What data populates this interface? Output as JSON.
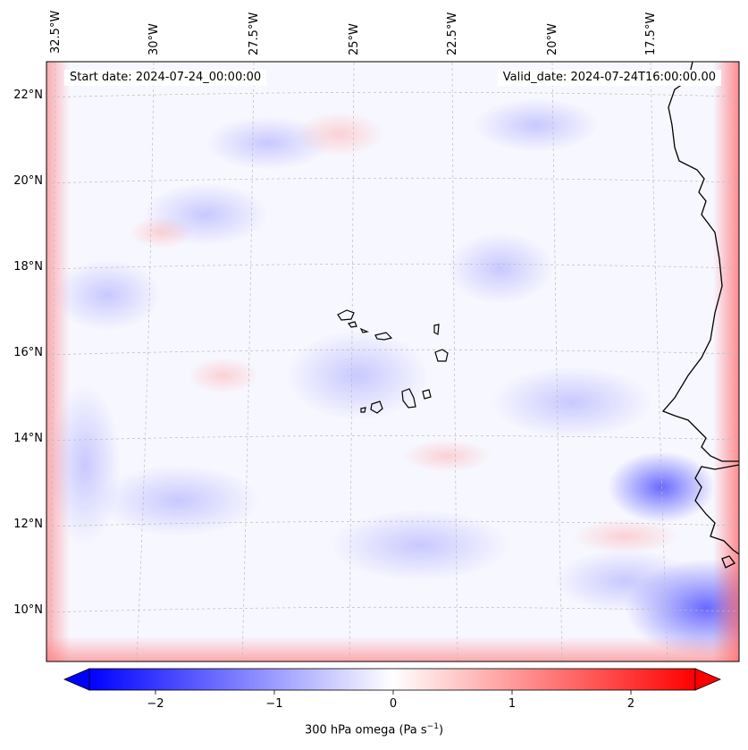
{
  "header": {
    "start_date": "Start date: 2024-07-24_00:00:00",
    "valid_date": "Valid_date: 2024-07-24T16:00:00.00"
  },
  "longitude_labels": [
    "32.5°W",
    "30°W",
    "27.5°W",
    "25°W",
    "22.5°W",
    "20°W",
    "17.5°W"
  ],
  "latitude_labels": [
    "22°N",
    "20°N",
    "18°N",
    "16°N",
    "14°N",
    "12°N",
    "10°N"
  ],
  "colorbar": {
    "title": "300 hPa omega (Pa s",
    "title_sup": "−1",
    "title_close": ")",
    "min": -2.6,
    "max": 2.6,
    "ticks": [
      {
        "value": -2,
        "label": "−2"
      },
      {
        "value": -1,
        "label": "−1"
      },
      {
        "value": 0,
        "label": "0"
      },
      {
        "value": 1,
        "label": "1"
      },
      {
        "value": 2,
        "label": "2"
      }
    ],
    "colors": {
      "negative": "#0000ff",
      "zero": "#ffffff",
      "positive": "#ff0000"
    }
  },
  "map": {
    "land_outline_color": "#000000",
    "gridline_color": "#bbbbbb",
    "frame_color": "#000000"
  }
}
